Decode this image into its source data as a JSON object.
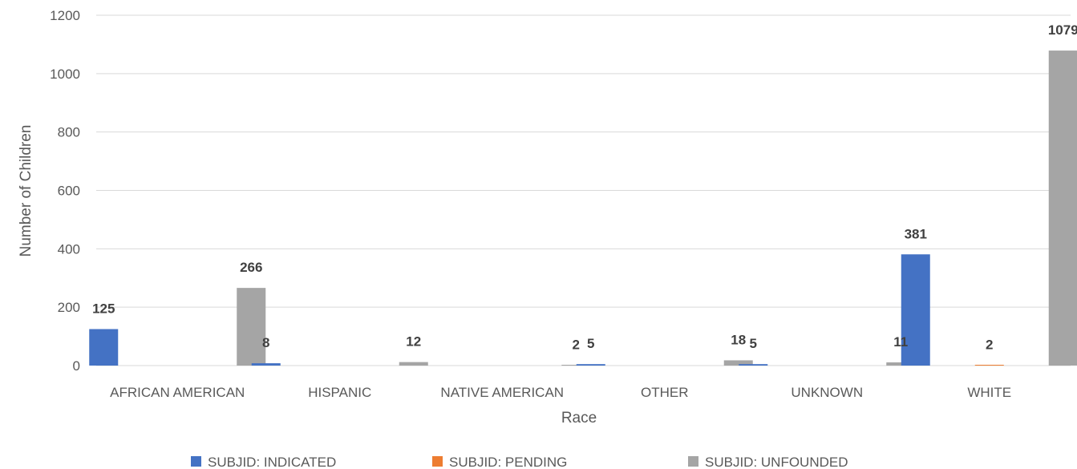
{
  "chart_data": {
    "type": "bar",
    "title": "",
    "xlabel": "Race",
    "ylabel": "Number of Children",
    "ylim": [
      0,
      1200
    ],
    "yticks": [
      0,
      200,
      400,
      600,
      800,
      1000,
      1200
    ],
    "grid": true,
    "legend_position": "bottom",
    "categories": [
      "AFRICAN AMERICAN",
      "HISPANIC",
      "NATIVE AMERICAN",
      "OTHER",
      "UNKNOWN",
      "WHITE"
    ],
    "series": [
      {
        "name": "SUBJID: INDICATED",
        "color": "#4472C4",
        "values": [
          125,
          8,
          null,
          5,
          5,
          381
        ]
      },
      {
        "name": "SUBJID: PENDING",
        "color": "#ED7D31",
        "values": [
          null,
          null,
          null,
          null,
          null,
          2
        ]
      },
      {
        "name": "SUBJID: UNFOUNDED",
        "color": "#A5A5A5",
        "values": [
          266,
          12,
          2,
          18,
          11,
          1079
        ]
      }
    ]
  }
}
